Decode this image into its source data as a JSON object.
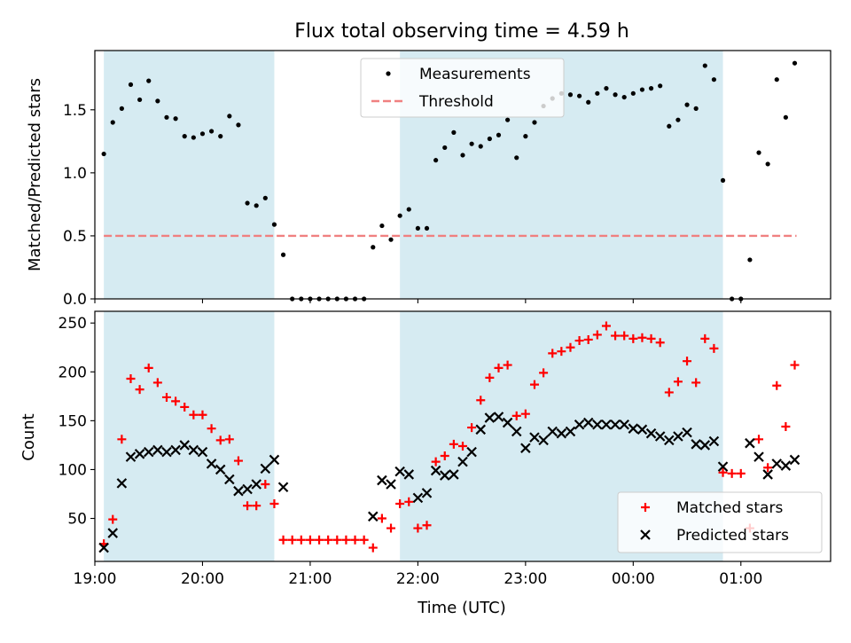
{
  "title": "Flux total observing time = 4.59 h",
  "colors": {
    "shade": "#add8e6",
    "measure": "#000000",
    "threshold": "#f08080",
    "matched": "#ff0000",
    "predicted": "#000000"
  },
  "chart_data": [
    {
      "type": "scatter",
      "panel": "top",
      "xlabel": "",
      "ylabel": "Matched/Predicted stars",
      "xlim": [
        "19:00",
        "01:50"
      ],
      "ylim": [
        0,
        1.97
      ],
      "yticks": [
        0.0,
        0.5,
        1.0,
        1.5
      ],
      "ytick_labels": [
        "0.0",
        "0.5",
        "1.0",
        "1.5"
      ],
      "shaded_intervals": [
        [
          "19:05",
          "20:40"
        ],
        [
          "21:50",
          "00:50"
        ]
      ],
      "legend": {
        "placement": "top-center",
        "entries": [
          "Measurements",
          "Threshold"
        ]
      },
      "threshold": {
        "name": "Threshold",
        "value": 0.5,
        "x_range": [
          "19:05",
          "01:31"
        ]
      },
      "series": [
        {
          "name": "Measurements",
          "marker": "dot",
          "x": [
            "19:05",
            "19:10",
            "19:15",
            "19:20",
            "19:25",
            "19:30",
            "19:35",
            "19:40",
            "19:45",
            "19:50",
            "19:55",
            "20:00",
            "20:05",
            "20:10",
            "20:15",
            "20:20",
            "20:25",
            "20:30",
            "20:35",
            "20:40",
            "20:45",
            "20:50",
            "20:55",
            "21:00",
            "21:05",
            "21:10",
            "21:15",
            "21:20",
            "21:25",
            "21:30",
            "21:35",
            "21:40",
            "21:45",
            "21:50",
            "21:55",
            "22:00",
            "22:05",
            "22:10",
            "22:15",
            "22:20",
            "22:25",
            "22:30",
            "22:35",
            "22:40",
            "22:45",
            "22:50",
            "22:55",
            "23:00",
            "23:05",
            "23:10",
            "23:15",
            "23:20",
            "23:25",
            "23:30",
            "23:35",
            "23:40",
            "23:45",
            "23:50",
            "23:55",
            "00:00",
            "00:05",
            "00:10",
            "00:15",
            "00:20",
            "00:25",
            "00:30",
            "00:35",
            "00:40",
            "00:45",
            "00:50",
            "00:55",
            "01:00",
            "01:05",
            "01:10",
            "01:15",
            "01:20",
            "01:25",
            "01:30"
          ],
          "y": [
            1.15,
            1.4,
            1.51,
            1.7,
            1.58,
            1.73,
            1.57,
            1.44,
            1.43,
            1.29,
            1.28,
            1.31,
            1.33,
            1.29,
            1.45,
            1.38,
            0.76,
            0.74,
            0.8,
            0.59,
            0.35,
            0.0,
            0.0,
            0.0,
            0.0,
            0.0,
            0.0,
            0.0,
            0.0,
            0.0,
            0.41,
            0.58,
            0.47,
            0.66,
            0.71,
            0.56,
            0.56,
            1.1,
            1.2,
            1.32,
            1.14,
            1.23,
            1.21,
            1.27,
            1.3,
            1.42,
            1.12,
            1.29,
            1.4,
            1.53,
            1.59,
            1.63,
            1.62,
            1.61,
            1.56,
            1.63,
            1.67,
            1.62,
            1.6,
            1.63,
            1.66,
            1.67,
            1.69,
            1.37,
            1.42,
            1.54,
            1.51,
            1.85,
            1.74,
            0.94,
            0.0,
            0.0,
            0.31,
            1.16,
            1.07,
            1.74,
            1.44,
            1.87
          ]
        }
      ]
    },
    {
      "type": "scatter",
      "panel": "bottom",
      "xlabel": "Time (UTC)",
      "ylabel": "Count",
      "xlim": [
        "19:00",
        "01:50"
      ],
      "ylim": [
        6,
        262
      ],
      "yticks": [
        50,
        100,
        150,
        200,
        250
      ],
      "ytick_labels": [
        "50",
        "100",
        "150",
        "200",
        "250"
      ],
      "xticks": [
        "19:00",
        "20:00",
        "21:00",
        "22:00",
        "23:00",
        "00:00",
        "01:00"
      ],
      "xtick_labels": [
        "19:00",
        "20:00",
        "21:00",
        "22:00",
        "23:00",
        "00:00",
        "01:00"
      ],
      "shaded_intervals": [
        [
          "19:05",
          "20:40"
        ],
        [
          "21:50",
          "00:50"
        ]
      ],
      "legend": {
        "placement": "lower-right",
        "entries": [
          "Matched stars",
          "Predicted stars"
        ]
      },
      "series": [
        {
          "name": "Matched stars",
          "marker": "plus",
          "x": [
            "19:05",
            "19:10",
            "19:15",
            "19:20",
            "19:25",
            "19:30",
            "19:35",
            "19:40",
            "19:45",
            "19:50",
            "19:55",
            "20:00",
            "20:05",
            "20:10",
            "20:15",
            "20:20",
            "20:25",
            "20:30",
            "20:35",
            "20:40",
            "20:45",
            "20:50",
            "20:55",
            "21:00",
            "21:05",
            "21:10",
            "21:15",
            "21:20",
            "21:25",
            "21:30",
            "21:35",
            "21:40",
            "21:45",
            "21:50",
            "21:55",
            "22:00",
            "22:05",
            "22:10",
            "22:15",
            "22:20",
            "22:25",
            "22:30",
            "22:35",
            "22:40",
            "22:45",
            "22:50",
            "22:55",
            "23:00",
            "23:05",
            "23:10",
            "23:15",
            "23:20",
            "23:25",
            "23:30",
            "23:35",
            "23:40",
            "23:45",
            "23:50",
            "23:55",
            "00:00",
            "00:05",
            "00:10",
            "00:15",
            "00:20",
            "00:25",
            "00:30",
            "00:35",
            "00:40",
            "00:45",
            "00:50",
            "00:55",
            "01:00",
            "01:05",
            "01:10",
            "01:15",
            "01:20",
            "01:25",
            "01:30"
          ],
          "y": [
            24,
            49,
            131,
            193,
            182,
            204,
            189,
            174,
            170,
            164,
            156,
            156,
            142,
            130,
            131,
            109,
            63,
            63,
            85,
            65,
            28,
            28,
            28,
            28,
            28,
            28,
            28,
            28,
            28,
            28,
            20,
            50,
            40,
            65,
            67,
            40,
            43,
            108,
            114,
            126,
            124,
            143,
            171,
            194,
            204,
            207,
            155,
            157,
            187,
            199,
            219,
            221,
            225,
            232,
            233,
            238,
            247,
            237,
            237,
            234,
            235,
            234,
            230,
            179,
            190,
            211,
            189,
            234,
            224,
            97,
            96,
            96,
            40,
            131,
            102,
            186,
            144,
            207
          ]
        },
        {
          "name": "Predicted stars",
          "marker": "cross",
          "x": [
            "19:05",
            "19:10",
            "19:15",
            "19:20",
            "19:25",
            "19:30",
            "19:35",
            "19:40",
            "19:45",
            "19:50",
            "19:55",
            "20:00",
            "20:05",
            "20:10",
            "20:15",
            "20:20",
            "20:25",
            "20:30",
            "20:35",
            "20:40",
            "20:45",
            "21:35",
            "21:40",
            "21:45",
            "21:50",
            "21:55",
            "22:00",
            "22:05",
            "22:10",
            "22:15",
            "22:20",
            "22:25",
            "22:30",
            "22:35",
            "22:40",
            "22:45",
            "22:50",
            "22:55",
            "23:00",
            "23:05",
            "23:10",
            "23:15",
            "23:20",
            "23:25",
            "23:30",
            "23:35",
            "23:40",
            "23:45",
            "23:50",
            "23:55",
            "00:00",
            "00:05",
            "00:10",
            "00:15",
            "00:20",
            "00:25",
            "00:30",
            "00:35",
            "00:40",
            "00:45",
            "00:50",
            "01:05",
            "01:10",
            "01:15",
            "01:20",
            "01:25",
            "01:30"
          ],
          "y": [
            20,
            35,
            86,
            113,
            116,
            118,
            120,
            118,
            120,
            125,
            120,
            118,
            106,
            100,
            90,
            78,
            80,
            85,
            101,
            110,
            82,
            52,
            89,
            85,
            98,
            95,
            71,
            76,
            99,
            94,
            95,
            108,
            118,
            141,
            153,
            154,
            148,
            139,
            122,
            133,
            130,
            139,
            137,
            139,
            146,
            148,
            146,
            146,
            146,
            146,
            142,
            141,
            137,
            134,
            130,
            134,
            138,
            126,
            125,
            129,
            103,
            127,
            113,
            95,
            106,
            104,
            110
          ]
        }
      ]
    }
  ]
}
